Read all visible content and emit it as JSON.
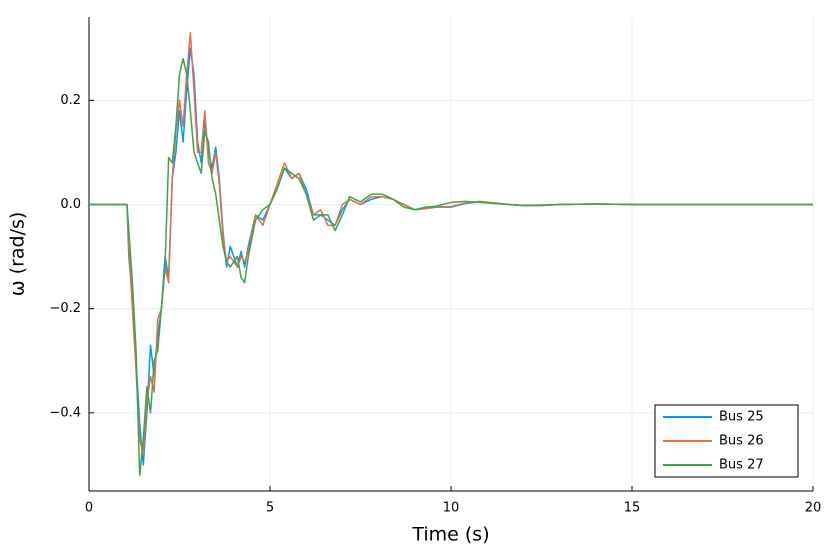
{
  "chart_data": {
    "type": "line",
    "xlabel": "Time (s)",
    "ylabel": "ω (rad/s)",
    "x": [
      0,
      1.0,
      1.05,
      1.1,
      1.2,
      1.3,
      1.4,
      1.5,
      1.6,
      1.7,
      1.8,
      1.9,
      2.0,
      2.1,
      2.2,
      2.3,
      2.4,
      2.5,
      2.6,
      2.7,
      2.8,
      2.9,
      3.0,
      3.1,
      3.2,
      3.3,
      3.4,
      3.5,
      3.6,
      3.7,
      3.8,
      3.9,
      4.0,
      4.1,
      4.2,
      4.3,
      4.4,
      4.6,
      4.8,
      5.0,
      5.2,
      5.4,
      5.6,
      5.8,
      6.0,
      6.2,
      6.4,
      6.6,
      6.8,
      7.0,
      7.2,
      7.5,
      7.8,
      8.1,
      8.4,
      8.7,
      9.0,
      9.3,
      9.6,
      10.0,
      10.4,
      10.8,
      11.2,
      11.6,
      12.0,
      12.5,
      13.0,
      14,
      15,
      16,
      17,
      18,
      19,
      20
    ],
    "series": [
      {
        "name": "Bus 25",
        "color": "#009afa",
        "values": [
          0,
          0,
          0,
          -0.1,
          -0.18,
          -0.3,
          -0.42,
          -0.5,
          -0.4,
          -0.27,
          -0.33,
          -0.25,
          -0.2,
          -0.1,
          -0.14,
          0.05,
          0.1,
          0.18,
          0.12,
          0.22,
          0.3,
          0.25,
          0.12,
          0.08,
          0.16,
          0.1,
          0.07,
          0.11,
          0.05,
          -0.05,
          -0.12,
          -0.08,
          -0.1,
          -0.12,
          -0.09,
          -0.12,
          -0.08,
          -0.02,
          -0.03,
          0.0,
          0.03,
          0.07,
          0.05,
          0.06,
          0.03,
          -0.02,
          -0.02,
          -0.03,
          -0.04,
          -0.01,
          0.01,
          0.0,
          0.01,
          0.015,
          0.01,
          0.0,
          -0.01,
          -0.008,
          -0.005,
          -0.005,
          0.002,
          0.005,
          0.003,
          0.0,
          -0.002,
          -0.002,
          0.0,
          0.001,
          0,
          0,
          0,
          0,
          0,
          0
        ]
      },
      {
        "name": "Bus 26",
        "color": "#e26f46",
        "values": [
          0,
          0,
          0,
          -0.08,
          -0.2,
          -0.32,
          -0.45,
          -0.48,
          -0.38,
          -0.33,
          -0.36,
          -0.22,
          -0.2,
          -0.12,
          -0.15,
          0.05,
          0.14,
          0.2,
          0.15,
          0.25,
          0.33,
          0.22,
          0.1,
          0.1,
          0.18,
          0.08,
          0.06,
          0.1,
          0.04,
          -0.06,
          -0.11,
          -0.1,
          -0.11,
          -0.12,
          -0.1,
          -0.11,
          -0.09,
          -0.02,
          -0.04,
          0.0,
          0.04,
          0.08,
          0.05,
          0.06,
          0.02,
          -0.02,
          -0.01,
          -0.04,
          -0.04,
          0.0,
          0.01,
          0.0,
          0.015,
          0.015,
          0.01,
          0.0,
          -0.01,
          -0.008,
          -0.004,
          -0.004,
          0.003,
          0.006,
          0.003,
          0.0,
          -0.002,
          -0.002,
          0.0,
          0.001,
          0,
          0,
          0,
          0,
          0,
          0
        ]
      },
      {
        "name": "Bus 27",
        "color": "#3da44d",
        "values": [
          0,
          0,
          0,
          -0.05,
          -0.15,
          -0.28,
          -0.52,
          -0.45,
          -0.35,
          -0.4,
          -0.3,
          -0.28,
          -0.2,
          -0.12,
          0.09,
          0.08,
          0.15,
          0.25,
          0.28,
          0.25,
          0.18,
          0.1,
          0.08,
          0.06,
          0.14,
          0.12,
          0.05,
          0.02,
          -0.03,
          -0.08,
          -0.11,
          -0.12,
          -0.11,
          -0.1,
          -0.14,
          -0.15,
          -0.1,
          -0.03,
          -0.01,
          0.0,
          0.03,
          0.07,
          0.06,
          0.05,
          0.02,
          -0.03,
          -0.02,
          -0.02,
          -0.05,
          -0.02,
          0.015,
          0.005,
          0.02,
          0.02,
          0.01,
          -0.005,
          -0.01,
          -0.005,
          -0.003,
          0.004,
          0.006,
          0.004,
          0.002,
          0.0,
          -0.002,
          -0.001,
          0.0,
          0.001,
          0,
          0,
          0,
          0,
          0,
          0
        ]
      }
    ],
    "xlim": [
      0,
      20
    ],
    "xticks": [
      0,
      5,
      10,
      15,
      20
    ],
    "ylim": [
      -0.55,
      0.36
    ],
    "yticks": [
      {
        "value": -0.4,
        "label": "−0.4"
      },
      {
        "value": -0.2,
        "label": "−0.2"
      },
      {
        "value": 0.0,
        "label": "0.0"
      },
      0.2
    ],
    "grid": true,
    "legend": "bottom-right"
  }
}
